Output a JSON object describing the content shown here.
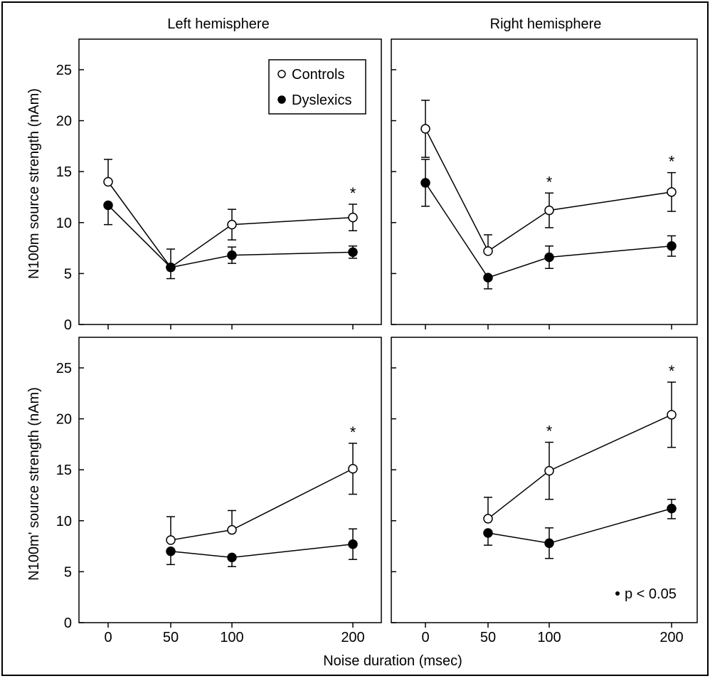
{
  "figure": {
    "xlabel": "Noise duration (msec)",
    "significance_note": "p < 0.05",
    "significance_symbol": "*",
    "colors": {
      "controls_fill": "#ffffff",
      "dyslexics_fill": "#000000",
      "ink": "#000000"
    }
  },
  "chart_data": [
    {
      "type": "line",
      "title": "Left hemisphere",
      "ylabel": "N100m source strength (nAm)",
      "xlabel": "",
      "x": [
        0,
        50,
        100,
        200
      ],
      "xticks": [
        "0",
        "50",
        "100",
        "200"
      ],
      "ylim": [
        0,
        28
      ],
      "yticks": [
        "0",
        "5",
        "10",
        "15",
        "20",
        "25"
      ],
      "legend": {
        "placement": "top-right",
        "entries": [
          "Controls",
          "Dyslexics"
        ]
      },
      "series": [
        {
          "name": "Controls",
          "marker": "open-circle",
          "values": [
            14.0,
            5.6,
            9.8,
            10.5
          ],
          "err_up": [
            2.2,
            1.8,
            1.5,
            1.3
          ],
          "err_down": [
            0,
            0,
            1.5,
            1.3
          ]
        },
        {
          "name": "Dyslexics",
          "marker": "filled-circle",
          "values": [
            11.7,
            5.6,
            6.8,
            7.1
          ],
          "err_up": [
            0,
            0,
            0.8,
            0.6
          ],
          "err_down": [
            1.9,
            1.1,
            0.8,
            0.6
          ]
        }
      ],
      "annotations": [
        {
          "x": 200,
          "text": "*"
        }
      ]
    },
    {
      "type": "line",
      "title": "Right hemisphere",
      "ylabel": "",
      "xlabel": "",
      "x": [
        0,
        50,
        100,
        200
      ],
      "xticks": [
        "0",
        "50",
        "100",
        "200"
      ],
      "ylim": [
        0,
        28
      ],
      "yticks": [
        "0",
        "5",
        "10",
        "15",
        "20",
        "25"
      ],
      "series": [
        {
          "name": "Controls",
          "marker": "open-circle",
          "values": [
            19.2,
            7.2,
            11.2,
            13.0
          ],
          "err_up": [
            2.8,
            1.6,
            1.7,
            1.9
          ],
          "err_down": [
            2.8,
            0,
            1.7,
            1.9
          ]
        },
        {
          "name": "Dyslexics",
          "marker": "filled-circle",
          "values": [
            13.9,
            4.6,
            6.6,
            7.7
          ],
          "err_up": [
            2.3,
            0,
            1.1,
            1.0
          ],
          "err_down": [
            2.3,
            1.1,
            1.1,
            1.0
          ]
        }
      ],
      "annotations": [
        {
          "x": 100,
          "text": "*"
        },
        {
          "x": 200,
          "text": "*"
        }
      ]
    },
    {
      "type": "line",
      "title": "",
      "ylabel": "N100m' source strength (nAm)",
      "xlabel": "",
      "x": [
        50,
        100,
        200
      ],
      "xticks": [
        "0",
        "50",
        "100",
        "200"
      ],
      "ylim": [
        0,
        28
      ],
      "yticks": [
        "0",
        "5",
        "10",
        "15",
        "20",
        "25"
      ],
      "series": [
        {
          "name": "Controls",
          "marker": "open-circle",
          "values": [
            8.1,
            9.1,
            15.1
          ],
          "err_up": [
            2.3,
            1.9,
            2.5
          ],
          "err_down": [
            0,
            0,
            2.5
          ]
        },
        {
          "name": "Dyslexics",
          "marker": "filled-circle",
          "values": [
            7.0,
            6.4,
            7.7
          ],
          "err_up": [
            0,
            0,
            1.5
          ],
          "err_down": [
            1.3,
            0.9,
            1.5
          ]
        }
      ],
      "annotations": [
        {
          "x": 200,
          "text": "*"
        }
      ]
    },
    {
      "type": "line",
      "title": "",
      "ylabel": "",
      "xlabel": "",
      "x": [
        50,
        100,
        200
      ],
      "xticks": [
        "0",
        "50",
        "100",
        "200"
      ],
      "ylim": [
        0,
        28
      ],
      "yticks": [
        "0",
        "5",
        "10",
        "15",
        "20",
        "25"
      ],
      "series": [
        {
          "name": "Controls",
          "marker": "open-circle",
          "values": [
            10.2,
            14.9,
            20.4
          ],
          "err_up": [
            2.1,
            2.8,
            3.2
          ],
          "err_down": [
            0,
            2.8,
            3.2
          ]
        },
        {
          "name": "Dyslexics",
          "marker": "filled-circle",
          "values": [
            8.8,
            7.8,
            11.2
          ],
          "err_up": [
            0,
            1.5,
            0.9
          ],
          "err_down": [
            1.2,
            1.5,
            1.0
          ]
        }
      ],
      "annotations": [
        {
          "x": 100,
          "text": "*"
        },
        {
          "x": 200,
          "text": "*"
        }
      ]
    }
  ]
}
